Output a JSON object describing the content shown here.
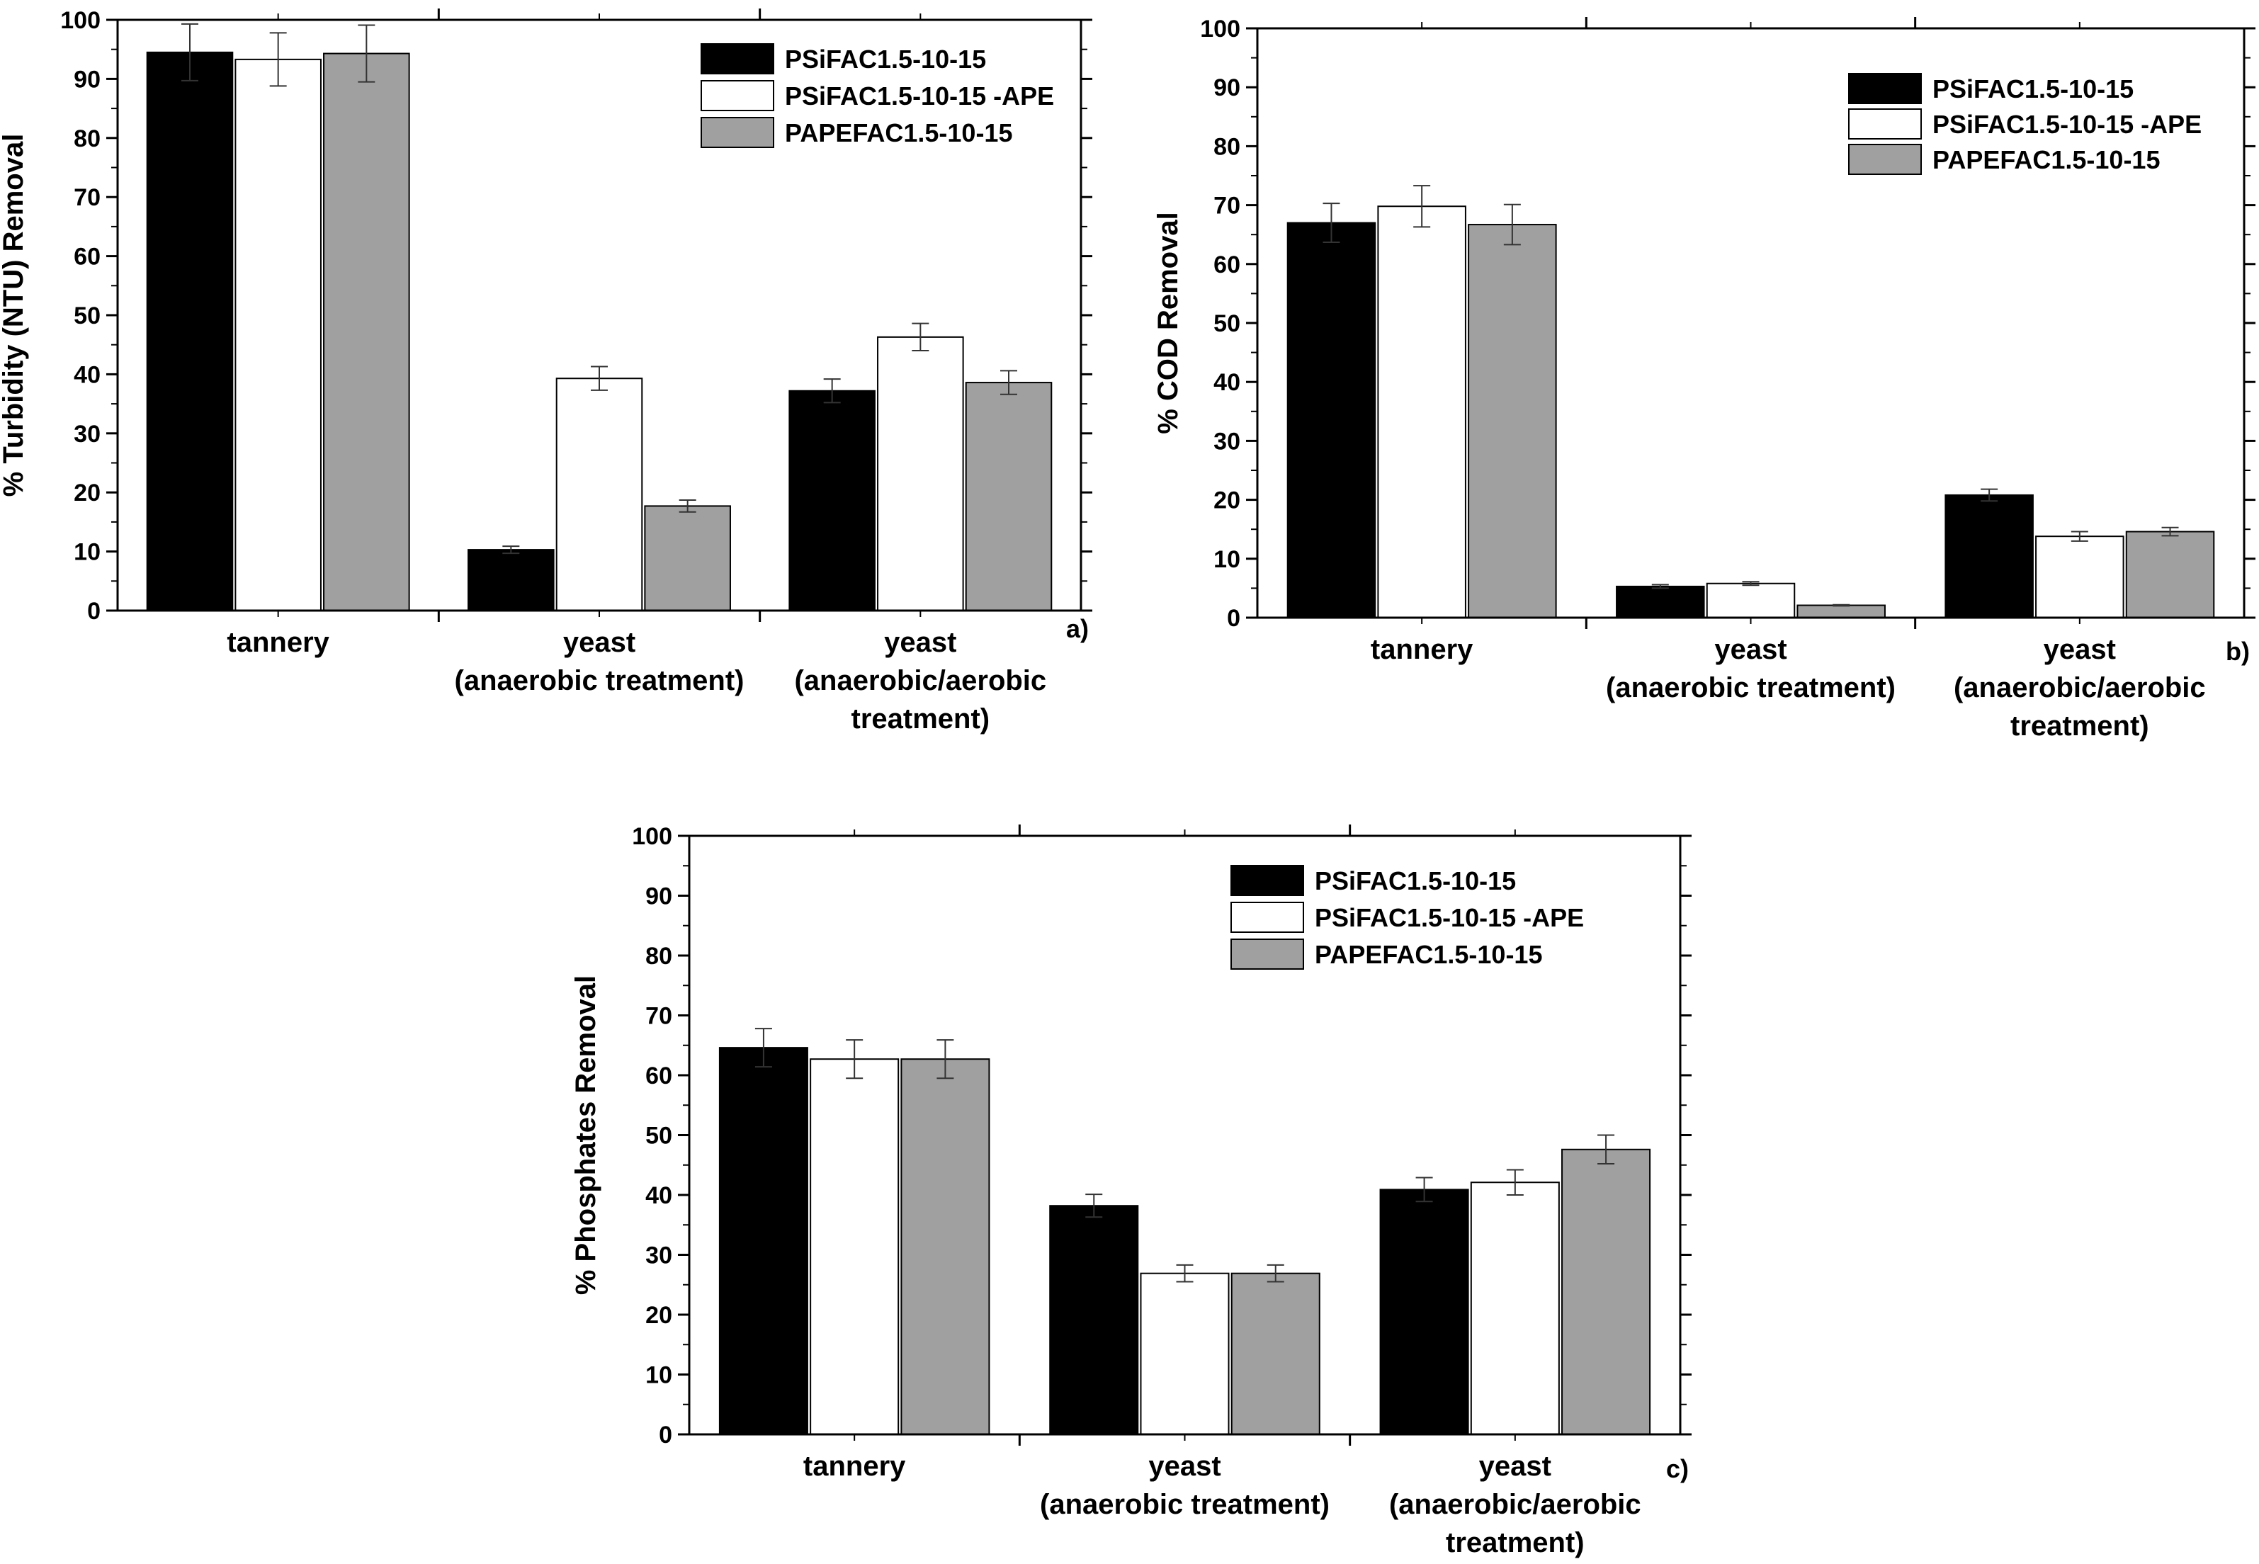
{
  "chart_data": [
    {
      "type": "bar",
      "panel_label": "a)",
      "ylabel": "% Turbidity (NTU) Removal",
      "ylim": [
        0,
        100
      ],
      "y_ticks": [
        "0",
        "10",
        "20",
        "30",
        "40",
        "50",
        "60",
        "70",
        "80",
        "90",
        "100"
      ],
      "categories": [
        [
          "tannery"
        ],
        [
          "yeast",
          "(anaerobic treatment)"
        ],
        [
          "yeast",
          "(anaerobic/aerobic",
          "treatment)"
        ]
      ],
      "series": [
        {
          "name": "PSiFAC1.5-10-15",
          "color": "#000000",
          "values": [
            94.5,
            10.3,
            37.2
          ],
          "errors": [
            4.8,
            0.6,
            2.0
          ]
        },
        {
          "name": "PSiFAC1.5-10-15 -APE",
          "color": "#ffffff",
          "values": [
            93.3,
            39.3,
            46.3
          ],
          "errors": [
            4.5,
            2.0,
            2.3
          ]
        },
        {
          "name": "PAPEFAC1.5-10-15",
          "color": "#a0a0a0",
          "values": [
            94.3,
            17.7,
            38.6
          ],
          "errors": [
            4.8,
            1.0,
            2.0
          ]
        }
      ],
      "legend_position": "top-right"
    },
    {
      "type": "bar",
      "panel_label": "b)",
      "ylabel": "% COD Removal",
      "ylim": [
        0,
        100
      ],
      "y_ticks": [
        "0",
        "10",
        "20",
        "30",
        "40",
        "50",
        "60",
        "70",
        "80",
        "90",
        "100"
      ],
      "categories": [
        [
          "tannery"
        ],
        [
          "yeast",
          "(anaerobic treatment)"
        ],
        [
          "yeast",
          "(anaerobic/aerobic",
          "treatment)"
        ]
      ],
      "series": [
        {
          "name": "PSiFAC1.5-10-15",
          "color": "#000000",
          "values": [
            67.0,
            5.3,
            20.8
          ],
          "errors": [
            3.3,
            0.3,
            1.0
          ]
        },
        {
          "name": "PSiFAC1.5-10-15 -APE",
          "color": "#ffffff",
          "values": [
            69.8,
            5.8,
            13.8
          ],
          "errors": [
            3.5,
            0.3,
            0.8
          ]
        },
        {
          "name": "PAPEFAC1.5-10-15",
          "color": "#a0a0a0",
          "values": [
            66.7,
            2.1,
            14.6
          ],
          "errors": [
            3.4,
            0.1,
            0.7
          ]
        }
      ],
      "legend_position": "top-right"
    },
    {
      "type": "bar",
      "panel_label": "c)",
      "ylabel": "% Phosphates Removal",
      "ylim": [
        0,
        100
      ],
      "y_ticks": [
        "0",
        "10",
        "20",
        "30",
        "40",
        "50",
        "60",
        "70",
        "80",
        "90",
        "100"
      ],
      "categories": [
        [
          "tannery"
        ],
        [
          "yeast",
          "(anaerobic treatment)"
        ],
        [
          "yeast",
          "(anaerobic/aerobic",
          "treatment)"
        ]
      ],
      "series": [
        {
          "name": "PSiFAC1.5-10-15",
          "color": "#000000",
          "values": [
            64.6,
            38.2,
            40.9
          ],
          "errors": [
            3.2,
            1.9,
            2.0
          ]
        },
        {
          "name": "PSiFAC1.5-10-15 -APE",
          "color": "#ffffff",
          "values": [
            62.7,
            26.9,
            42.1
          ],
          "errors": [
            3.2,
            1.4,
            2.1
          ]
        },
        {
          "name": "PAPEFAC1.5-10-15",
          "color": "#a0a0a0",
          "values": [
            62.7,
            26.9,
            47.6
          ],
          "errors": [
            3.2,
            1.4,
            2.4
          ]
        }
      ],
      "legend_position": "top-right"
    }
  ]
}
